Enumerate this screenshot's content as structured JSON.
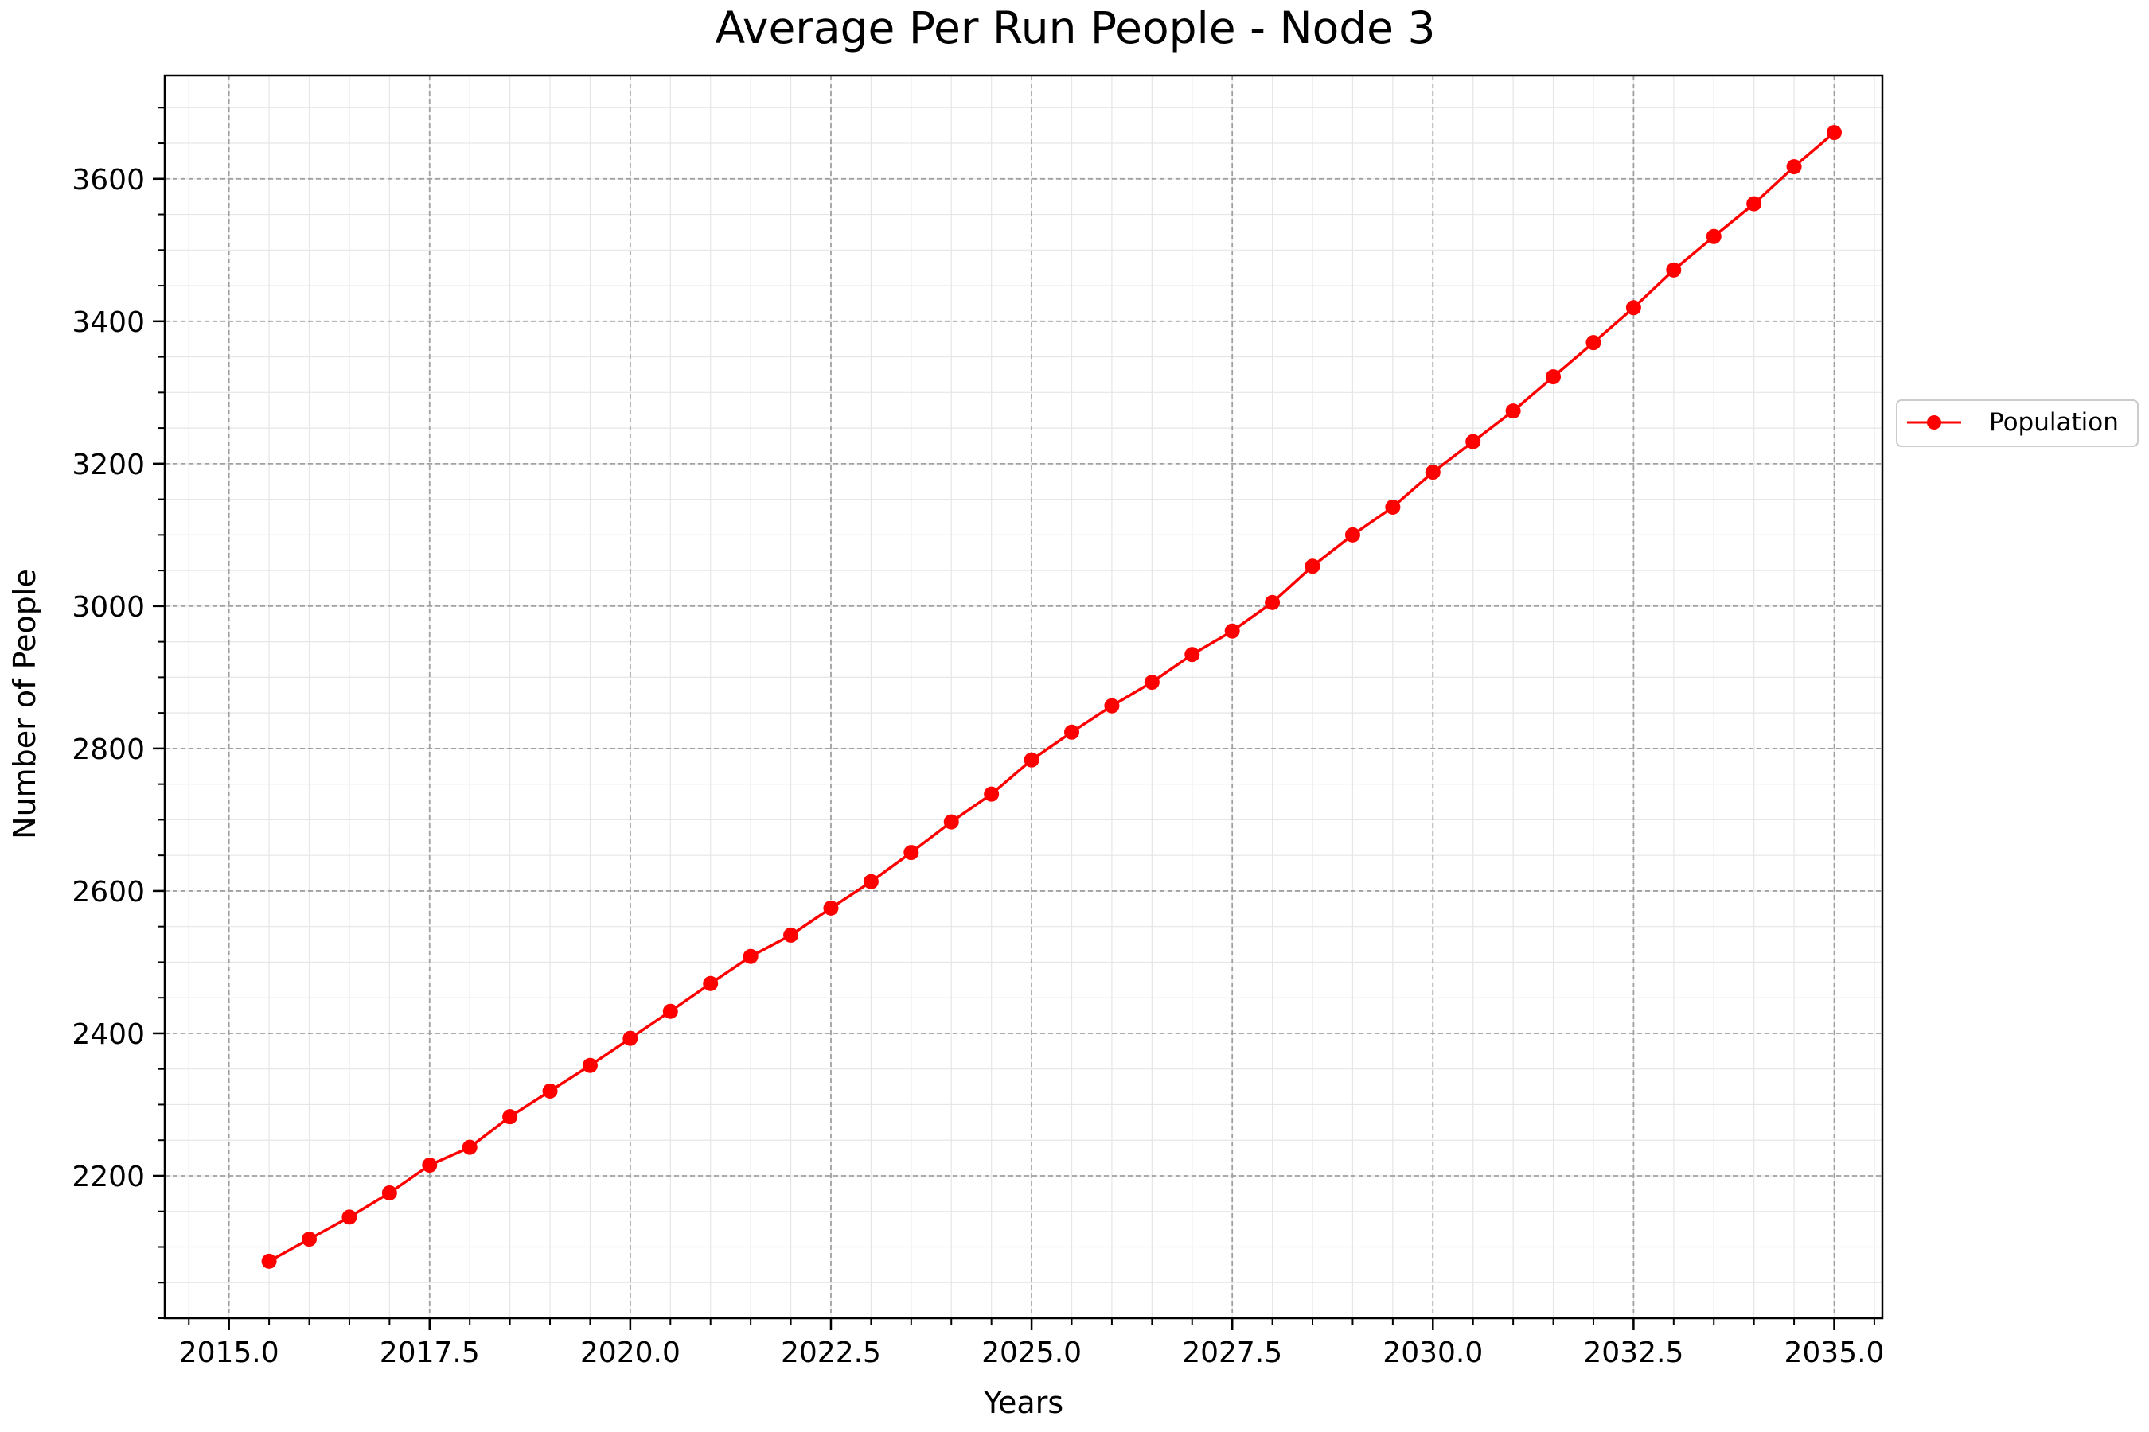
{
  "chart_data": {
    "type": "line",
    "title": "Average Per Run People - Node 3",
    "xlabel": "Years",
    "ylabel": "Number of People",
    "xlim": [
      2014.2,
      2035.6
    ],
    "ylim": [
      2000,
      3745
    ],
    "xticks": [
      2015.0,
      2017.5,
      2020.0,
      2022.5,
      2025.0,
      2027.5,
      2030.0,
      2032.5,
      2035.0
    ],
    "xtick_labels": [
      "2015.0",
      "2017.5",
      "2020.0",
      "2022.5",
      "2025.0",
      "2027.5",
      "2030.0",
      "2032.5",
      "2035.0"
    ],
    "yticks": [
      2200,
      2400,
      2600,
      2800,
      3000,
      3200,
      3400,
      3600
    ],
    "ytick_labels": [
      "2200",
      "2400",
      "2600",
      "2800",
      "3000",
      "3200",
      "3400",
      "3600"
    ],
    "grid": true,
    "legend_position": "outside-right",
    "series": [
      {
        "name": "Population",
        "color": "#ff0000",
        "x": [
          2015.5,
          2016.0,
          2016.5,
          2017.0,
          2017.5,
          2018.0,
          2018.5,
          2019.0,
          2019.5,
          2020.0,
          2020.5,
          2021.0,
          2021.5,
          2022.0,
          2022.5,
          2023.0,
          2023.5,
          2024.0,
          2024.5,
          2025.0,
          2025.5,
          2026.0,
          2026.5,
          2027.0,
          2027.5,
          2028.0,
          2028.5,
          2029.0,
          2029.5,
          2030.0,
          2030.5,
          2031.0,
          2031.5,
          2032.0,
          2032.5,
          2033.0,
          2033.5,
          2034.0,
          2034.5,
          2035.0
        ],
        "y": [
          2080,
          2111,
          2142,
          2176,
          2215,
          2240,
          2283,
          2319,
          2355,
          2393,
          2431,
          2470,
          2508,
          2538,
          2576,
          2613,
          2654,
          2697,
          2736,
          2784,
          2823,
          2860,
          2893,
          2932,
          2965,
          3005,
          3056,
          3100,
          3139,
          3188,
          3231,
          3274,
          3322,
          3370,
          3419,
          3472,
          3519,
          3565,
          3617,
          3665
        ]
      }
    ]
  }
}
